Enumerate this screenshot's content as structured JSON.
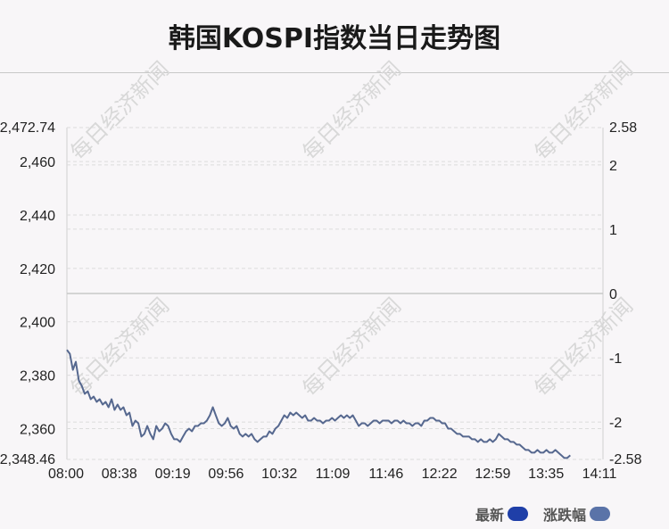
{
  "title": "韩国KOSPI指数当日走势图",
  "watermark": "每日经济新闻",
  "legend": [
    {
      "label": "最新",
      "color": "#1f3fa8"
    },
    {
      "label": "涨跌幅",
      "color": "#5a73a8"
    }
  ],
  "colors": {
    "line": "#56688f",
    "baseline": "#c8c8c8",
    "grid": "#dcdcdc"
  },
  "chart_data": {
    "type": "line",
    "x_ticks": [
      "08:00",
      "08:38",
      "09:19",
      "09:56",
      "10:32",
      "11:09",
      "11:46",
      "12:22",
      "12:59",
      "13:35",
      "14:11"
    ],
    "y_left": {
      "min": 2348.46,
      "max": 2472.74,
      "top_label": "2,472.74",
      "bottom_label": "2,348.46",
      "ticks": [
        "2,460",
        "2,440",
        "2,420",
        "2,400",
        "2,380",
        "2,360"
      ],
      "tick_values": [
        2460,
        2440,
        2420,
        2400,
        2380,
        2360
      ]
    },
    "y_right": {
      "min": -2.58,
      "max": 2.58,
      "top_label": "2.58",
      "bottom_label": "-2.58",
      "ticks": [
        "2",
        "1",
        "0",
        "-1",
        "-2"
      ],
      "tick_values": [
        2,
        1,
        0,
        -1,
        -2
      ]
    },
    "baseline_value": 2410.6,
    "series": [
      {
        "points": [
          [
            0,
            2389.5
          ],
          [
            2,
            2388
          ],
          [
            4,
            2382
          ],
          [
            6,
            2385
          ],
          [
            8,
            2378
          ],
          [
            10,
            2376
          ],
          [
            12,
            2373
          ],
          [
            14,
            2374
          ],
          [
            16,
            2371
          ],
          [
            18,
            2372
          ],
          [
            20,
            2370
          ],
          [
            22,
            2371
          ],
          [
            24,
            2369
          ],
          [
            26,
            2370
          ],
          [
            28,
            2368
          ],
          [
            30,
            2371
          ],
          [
            32,
            2367
          ],
          [
            34,
            2369
          ],
          [
            36,
            2367
          ],
          [
            38,
            2368
          ],
          [
            40,
            2365
          ],
          [
            42,
            2366
          ],
          [
            44,
            2361
          ],
          [
            46,
            2363
          ],
          [
            48,
            2362
          ],
          [
            50,
            2357
          ],
          [
            52,
            2358
          ],
          [
            54,
            2361
          ],
          [
            56,
            2358
          ],
          [
            58,
            2356
          ],
          [
            60,
            2361
          ],
          [
            62,
            2359
          ],
          [
            64,
            2360
          ],
          [
            66,
            2362
          ],
          [
            68,
            2361
          ],
          [
            70,
            2358
          ],
          [
            72,
            2356
          ],
          [
            74,
            2356
          ],
          [
            76,
            2355
          ],
          [
            78,
            2357
          ],
          [
            80,
            2359
          ],
          [
            82,
            2360
          ],
          [
            84,
            2359
          ],
          [
            86,
            2361
          ],
          [
            88,
            2361
          ],
          [
            90,
            2362
          ],
          [
            92,
            2362
          ],
          [
            94,
            2363
          ],
          [
            96,
            2365
          ],
          [
            98,
            2368
          ],
          [
            100,
            2365
          ],
          [
            102,
            2362
          ],
          [
            104,
            2361
          ],
          [
            106,
            2362
          ],
          [
            108,
            2364
          ],
          [
            110,
            2361
          ],
          [
            112,
            2360
          ],
          [
            114,
            2361
          ],
          [
            116,
            2358
          ],
          [
            118,
            2357
          ],
          [
            120,
            2358
          ],
          [
            122,
            2357
          ],
          [
            124,
            2358
          ],
          [
            126,
            2356
          ],
          [
            128,
            2355
          ],
          [
            130,
            2356
          ],
          [
            132,
            2357
          ],
          [
            134,
            2357
          ],
          [
            136,
            2359
          ],
          [
            138,
            2358
          ],
          [
            140,
            2360
          ],
          [
            142,
            2361
          ],
          [
            144,
            2363
          ],
          [
            146,
            2365
          ],
          [
            148,
            2364
          ],
          [
            150,
            2366
          ],
          [
            152,
            2365
          ],
          [
            154,
            2366
          ],
          [
            156,
            2365
          ],
          [
            158,
            2364
          ],
          [
            160,
            2365
          ],
          [
            162,
            2363
          ],
          [
            164,
            2363
          ],
          [
            166,
            2364
          ],
          [
            168,
            2363
          ],
          [
            170,
            2363
          ],
          [
            172,
            2362
          ],
          [
            174,
            2363
          ],
          [
            176,
            2363
          ],
          [
            178,
            2364
          ],
          [
            180,
            2363
          ],
          [
            182,
            2364
          ],
          [
            184,
            2365
          ],
          [
            186,
            2364
          ],
          [
            188,
            2365
          ],
          [
            190,
            2364
          ],
          [
            192,
            2365
          ],
          [
            194,
            2363
          ],
          [
            196,
            2361
          ],
          [
            198,
            2362
          ],
          [
            200,
            2362
          ],
          [
            202,
            2361
          ],
          [
            204,
            2362
          ],
          [
            206,
            2363
          ],
          [
            208,
            2363
          ],
          [
            210,
            2362
          ],
          [
            212,
            2363
          ],
          [
            214,
            2363
          ],
          [
            216,
            2363
          ],
          [
            218,
            2362
          ],
          [
            220,
            2363
          ],
          [
            222,
            2363
          ],
          [
            224,
            2362
          ],
          [
            226,
            2363
          ],
          [
            228,
            2362
          ],
          [
            230,
            2362
          ],
          [
            232,
            2361
          ],
          [
            234,
            2362
          ],
          [
            236,
            2362
          ],
          [
            238,
            2361
          ],
          [
            240,
            2363
          ],
          [
            242,
            2363
          ],
          [
            244,
            2364
          ],
          [
            246,
            2364
          ],
          [
            248,
            2363
          ],
          [
            250,
            2363
          ],
          [
            252,
            2362
          ],
          [
            254,
            2362
          ],
          [
            256,
            2360
          ],
          [
            258,
            2360
          ],
          [
            260,
            2359
          ],
          [
            262,
            2358
          ],
          [
            264,
            2358
          ],
          [
            266,
            2357
          ],
          [
            268,
            2357
          ],
          [
            270,
            2357
          ],
          [
            272,
            2356
          ],
          [
            274,
            2356
          ],
          [
            276,
            2355
          ],
          [
            278,
            2356
          ],
          [
            280,
            2355
          ],
          [
            282,
            2355
          ],
          [
            284,
            2356
          ],
          [
            286,
            2355
          ],
          [
            288,
            2356
          ],
          [
            290,
            2358
          ],
          [
            292,
            2357
          ],
          [
            294,
            2356
          ],
          [
            296,
            2356
          ],
          [
            298,
            2355
          ],
          [
            300,
            2355
          ],
          [
            302,
            2354
          ],
          [
            304,
            2354
          ],
          [
            306,
            2353
          ],
          [
            308,
            2352
          ],
          [
            310,
            2352
          ],
          [
            312,
            2351
          ],
          [
            314,
            2351
          ],
          [
            316,
            2352
          ],
          [
            318,
            2351
          ],
          [
            320,
            2351
          ],
          [
            322,
            2352
          ],
          [
            324,
            2351
          ],
          [
            326,
            2351
          ],
          [
            328,
            2352
          ],
          [
            330,
            2351
          ],
          [
            332,
            2350
          ],
          [
            334,
            2349
          ],
          [
            336,
            2349
          ],
          [
            338,
            2350
          ]
        ]
      }
    ],
    "x_point_max": 360
  }
}
